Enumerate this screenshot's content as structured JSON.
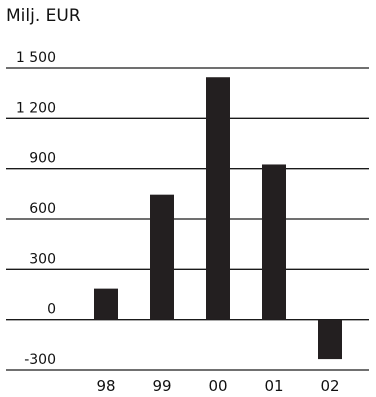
{
  "chart_data": {
    "type": "bar",
    "unit_label": "Milj. EUR",
    "categories": [
      "98",
      "99",
      "00",
      "01",
      "02"
    ],
    "values": [
      185,
      745,
      1445,
      925,
      -235
    ],
    "ylim": [
      -300,
      1500
    ],
    "yticks": [
      1500,
      1200,
      900,
      600,
      300,
      0,
      -300
    ],
    "ytick_labels": [
      "1 500",
      "1 200",
      "900",
      "600",
      "300",
      "0",
      "-300"
    ],
    "bar_color": "#231f20",
    "grid": true
  }
}
